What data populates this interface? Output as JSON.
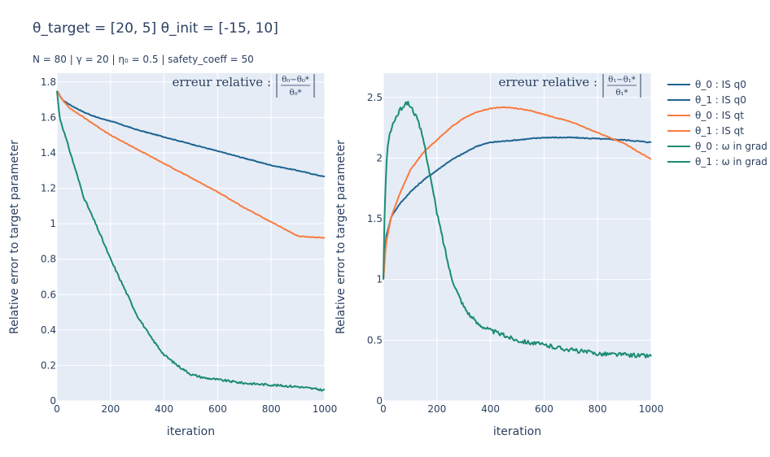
{
  "title": "θ_target = [20, 5]      θ_init = [-15, 10]",
  "subtitle": "N = 80  |  γ = 20  | η₀ = 0.5  | safety_coeff = 50",
  "colors": {
    "blue": "#1f6391",
    "orange": "#f97b3d",
    "green": "#1c8c72",
    "plot_bg": "#e5ecf6",
    "grid": "#ffffff"
  },
  "chart_data": [
    {
      "type": "line",
      "xlabel": "iteration",
      "ylabel": "Relative error to target parameter",
      "xlim": [
        0,
        1000
      ],
      "ylim": [
        0,
        1.85
      ],
      "xticks": [
        0,
        200,
        400,
        600,
        800,
        1000
      ],
      "yticks": [
        0,
        0.2,
        0.4,
        0.6,
        0.8,
        1,
        1.2,
        1.4,
        1.6,
        1.8
      ],
      "ytick_labels": [
        "0",
        "0.2",
        "0.4",
        "0.6",
        "0.8",
        "1",
        "1.2",
        "1.4",
        "1.6",
        "1.8"
      ],
      "annotation": {
        "text": "erreur relative :",
        "numerator": "θ₀−θ₀*",
        "denominator": "θ₀*"
      },
      "series": [
        {
          "name": "θ_0 : IS q0",
          "color": "#1f6391",
          "noise": 0.002,
          "x": [
            0,
            20,
            50,
            100,
            150,
            200,
            300,
            400,
            500,
            600,
            700,
            800,
            900,
            1000
          ],
          "y": [
            1.75,
            1.7,
            1.67,
            1.63,
            1.6,
            1.58,
            1.53,
            1.49,
            1.45,
            1.41,
            1.37,
            1.33,
            1.3,
            1.265
          ]
        },
        {
          "name": "θ_0 : IS qt",
          "color": "#f97b3d",
          "noise": 0.002,
          "x": [
            0,
            20,
            50,
            100,
            150,
            200,
            300,
            400,
            500,
            600,
            700,
            800,
            900,
            1000
          ],
          "y": [
            1.75,
            1.7,
            1.65,
            1.6,
            1.55,
            1.5,
            1.42,
            1.34,
            1.26,
            1.18,
            1.09,
            1.01,
            0.93,
            0.92
          ]
        },
        {
          "name": "θ_0 : ω in grad",
          "color": "#1c8c72",
          "noise": 0.006,
          "x": [
            0,
            10,
            30,
            60,
            100,
            150,
            200,
            250,
            300,
            350,
            400,
            450,
            500,
            550,
            600,
            700,
            800,
            900,
            1000
          ],
          "y": [
            1.75,
            1.6,
            1.5,
            1.35,
            1.15,
            0.98,
            0.8,
            0.64,
            0.48,
            0.36,
            0.26,
            0.2,
            0.15,
            0.13,
            0.12,
            0.1,
            0.09,
            0.08,
            0.06
          ]
        }
      ]
    },
    {
      "type": "line",
      "xlabel": "iteration",
      "ylabel": "Relative error to target parameter",
      "xlim": [
        0,
        1000
      ],
      "ylim": [
        0,
        2.7
      ],
      "xticks": [
        0,
        200,
        400,
        600,
        800,
        1000
      ],
      "yticks": [
        0,
        0.5,
        1,
        1.5,
        2,
        2.5
      ],
      "ytick_labels": [
        "0",
        "0.5",
        "1",
        "1.5",
        "2",
        "2.5"
      ],
      "annotation": {
        "text": "erreur relative :",
        "numerator": "θ₁−θ₁*",
        "denominator": "θ₁*"
      },
      "series": [
        {
          "name": "θ_1 : IS q0",
          "color": "#1f6391",
          "noise": 0.004,
          "x": [
            0,
            10,
            30,
            60,
            100,
            150,
            200,
            250,
            300,
            350,
            400,
            450,
            500,
            550,
            600,
            700,
            800,
            900,
            1000
          ],
          "y": [
            1.0,
            1.35,
            1.52,
            1.62,
            1.72,
            1.82,
            1.9,
            1.98,
            2.04,
            2.1,
            2.13,
            2.14,
            2.15,
            2.16,
            2.17,
            2.17,
            2.16,
            2.15,
            2.13
          ]
        },
        {
          "name": "θ_1 : IS qt",
          "color": "#f97b3d",
          "noise": 0.003,
          "x": [
            0,
            10,
            30,
            60,
            100,
            150,
            200,
            250,
            300,
            350,
            400,
            450,
            500,
            550,
            600,
            700,
            800,
            900,
            1000
          ],
          "y": [
            1.0,
            1.3,
            1.52,
            1.7,
            1.9,
            2.05,
            2.15,
            2.25,
            2.33,
            2.38,
            2.41,
            2.42,
            2.41,
            2.39,
            2.36,
            2.3,
            2.21,
            2.12,
            1.99
          ]
        },
        {
          "name": "θ_1 : ω in grad",
          "color": "#1c8c72",
          "noise": 0.018,
          "x": [
            0,
            5,
            15,
            30,
            50,
            70,
            90,
            110,
            130,
            150,
            175,
            200,
            225,
            250,
            275,
            300,
            325,
            350,
            400,
            450,
            500,
            600,
            700,
            800,
            900,
            1000
          ],
          "y": [
            1.0,
            1.6,
            2.1,
            2.25,
            2.35,
            2.42,
            2.46,
            2.4,
            2.3,
            2.15,
            1.85,
            1.55,
            1.3,
            1.05,
            0.9,
            0.78,
            0.7,
            0.64,
            0.58,
            0.54,
            0.5,
            0.46,
            0.42,
            0.39,
            0.38,
            0.37
          ]
        }
      ]
    }
  ],
  "legend": [
    {
      "label": "θ_0 : IS q0",
      "color": "#1f6391"
    },
    {
      "label": "θ_1 : IS q0",
      "color": "#1f6391"
    },
    {
      "label": "θ_0 : IS qt",
      "color": "#f97b3d"
    },
    {
      "label": "θ_1 : IS qt",
      "color": "#f97b3d"
    },
    {
      "label": "θ_0 : ω in grad",
      "color": "#1c8c72"
    },
    {
      "label": "θ_1 : ω in grad",
      "color": "#1c8c72"
    }
  ]
}
